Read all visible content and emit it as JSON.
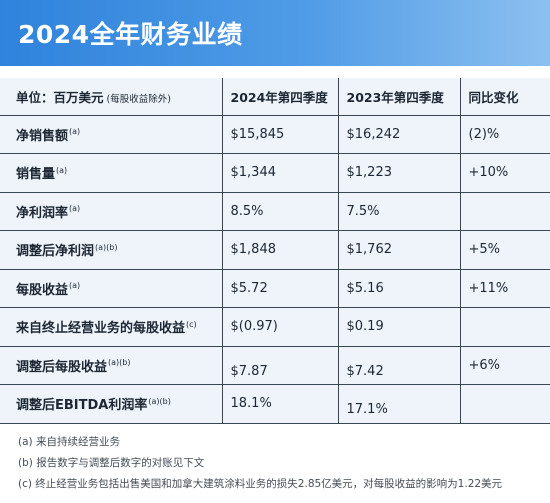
{
  "banner": {
    "title": "2024全年财务业绩"
  },
  "table": {
    "header": {
      "unit_label": "单位：百万美元",
      "unit_note": "(每股收益除外)",
      "col1": "2024年第四季度",
      "col2": "2023年第四季度",
      "col3": "同比变化"
    },
    "rows": [
      {
        "label": "净销售额",
        "sup": "(a)",
        "q4_2024": "$15,845",
        "q4_2023": "$16,242",
        "yoy": "(2)%"
      },
      {
        "label": "销售量",
        "sup": "(a)",
        "q4_2024": "$1,344",
        "q4_2023": "$1,223",
        "yoy": "+10%"
      },
      {
        "label": "净利润率",
        "sup": "(a)",
        "q4_2024": "8.5%",
        "q4_2023": "7.5%",
        "yoy": ""
      },
      {
        "label": "调整后净利润",
        "sup": "(a)(b)",
        "q4_2024": "$1,848",
        "q4_2023": "$1,762",
        "yoy": "+5%"
      },
      {
        "label": "每股收益",
        "sup": "(a)",
        "q4_2024": "$5.72",
        "q4_2023": "$5.16",
        "yoy": "+11%"
      },
      {
        "label": "来自终止经营业务的每股收益",
        "sup": "(c)",
        "q4_2024": "$(0.97)",
        "q4_2023": "$0.19",
        "yoy": ""
      },
      {
        "label": "调整后每股收益",
        "sup": "(a)(b)",
        "q4_2024": "$7.87",
        "q4_2023": "$7.42",
        "yoy": "+6%"
      },
      {
        "label": "调整后EBITDA利润率",
        "sup": "(a)(b)",
        "q4_2024": "18.1%",
        "q4_2023": "17.1%",
        "yoy": ""
      }
    ]
  },
  "footnotes": {
    "a": "(a) 来自持续经营业务",
    "b": "(b) 报告数字与调整后数字的对账见下文",
    "c": "(c) 终止经营业务包括出售美国和加拿大建筑涂料业务的损失2.85亿美元，对每股收益的影响为1.22美元"
  }
}
